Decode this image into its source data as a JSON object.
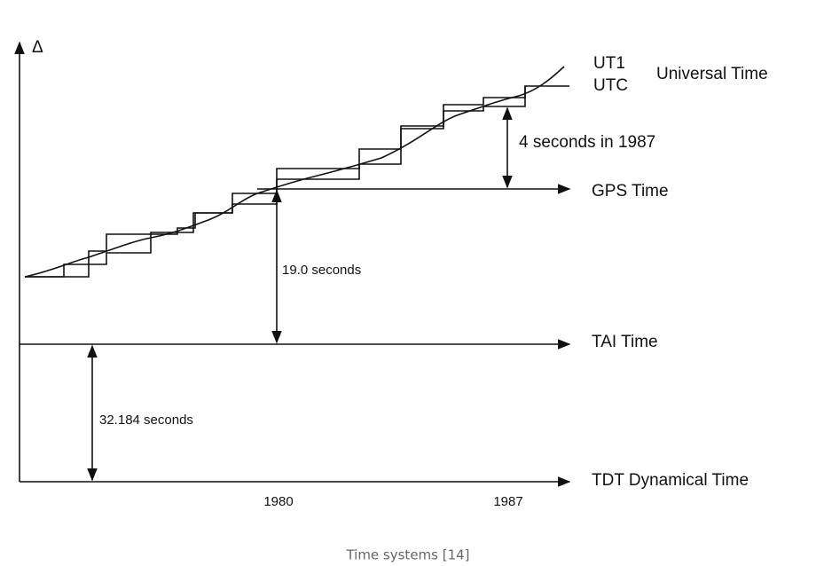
{
  "figure": {
    "axis_symbol": "Δ",
    "labels": {
      "ut1": "UT1",
      "utc": "UTC",
      "universal_time": "Universal Time",
      "gps_offset": "4 seconds in 1987",
      "gps_time": "GPS Time",
      "tai_gps_offset": "19.0 seconds",
      "tai_time": "TAI  Time",
      "tdt_tai_offset": "32.184 seconds",
      "tdt_time": "TDT Dynamical Time"
    },
    "x_labels": [
      "1980",
      "1987"
    ],
    "caption": "Time systems [14]"
  }
}
